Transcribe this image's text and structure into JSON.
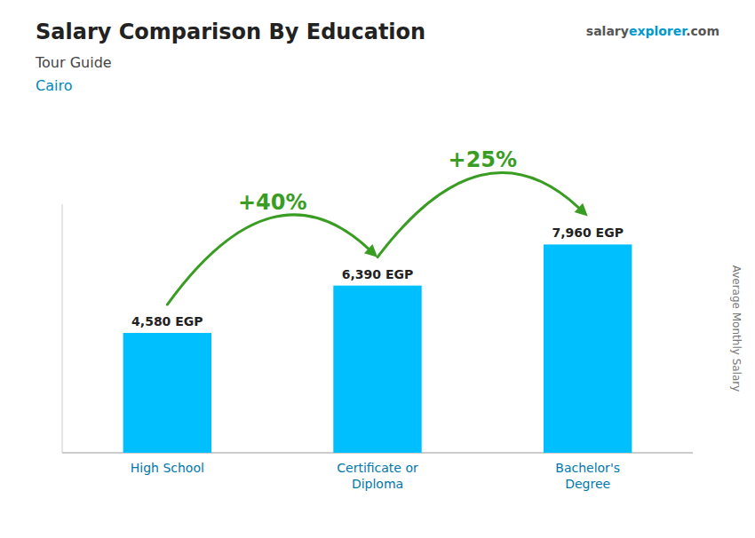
{
  "chart_data": {
    "type": "bar",
    "title": "Salary Comparison By Education",
    "subtitle": "Tour Guide",
    "annotations": [
      "Cairo",
      "salary",
      "explorer",
      ".com"
    ],
    "y_label": "Average Monthly Salary",
    "categories": [
      "High School",
      "Certificate or\nDiploma",
      "Bachelor's\nDegree"
    ],
    "values": [
      4580,
      6390,
      7960
    ],
    "value_labels": [
      "4,580 EGP",
      "6,390 EGP",
      "7,960 EGP"
    ],
    "data_labels": true,
    "pct_changes": [
      {
        "value": 40,
        "label": "+40%"
      },
      {
        "value": 25,
        "label": "+25%"
      }
    ],
    "color": "#00BFFF",
    "ylim": [
      0,
      9500
    ],
    "tick_labels": false,
    "grid": false
  }
}
